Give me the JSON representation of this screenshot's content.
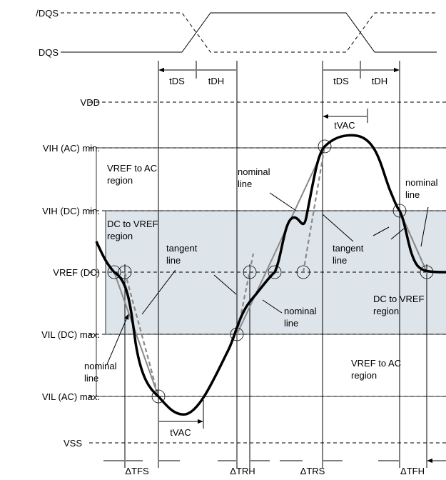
{
  "signals": [
    "/DQS",
    "DQS"
  ],
  "levels": [
    "VDD",
    "VIH (AC) min.",
    "VIH (DC) min.",
    "VREF (DC)",
    "VIL (DC) max.",
    "VIL (AC) max.",
    "VSS"
  ],
  "timing_labels": [
    "tDS",
    "tDH",
    "tDS",
    "tDH"
  ],
  "tvac_labels": [
    "tVAC",
    "tVAC"
  ],
  "annotations": [
    {
      "lines": [
        "VREF to AC",
        "region"
      ]
    },
    {
      "lines": [
        "nominal",
        "line"
      ]
    },
    {
      "lines": [
        "DC to VREF",
        "region"
      ]
    },
    {
      "lines": [
        "tangent",
        "line"
      ]
    },
    {
      "lines": [
        "nominal",
        "line"
      ]
    },
    {
      "lines": [
        "tangent",
        "line"
      ]
    },
    {
      "lines": [
        "nominal",
        "line"
      ]
    },
    {
      "lines": [
        "DC to VREF",
        "region"
      ]
    },
    {
      "lines": [
        "nominal",
        "line"
      ]
    },
    {
      "lines": [
        "VREF to AC",
        "region"
      ]
    }
  ],
  "delta_labels": [
    "ΔTFS",
    "ΔTRH",
    "ΔTRS",
    "ΔTFH"
  ]
}
